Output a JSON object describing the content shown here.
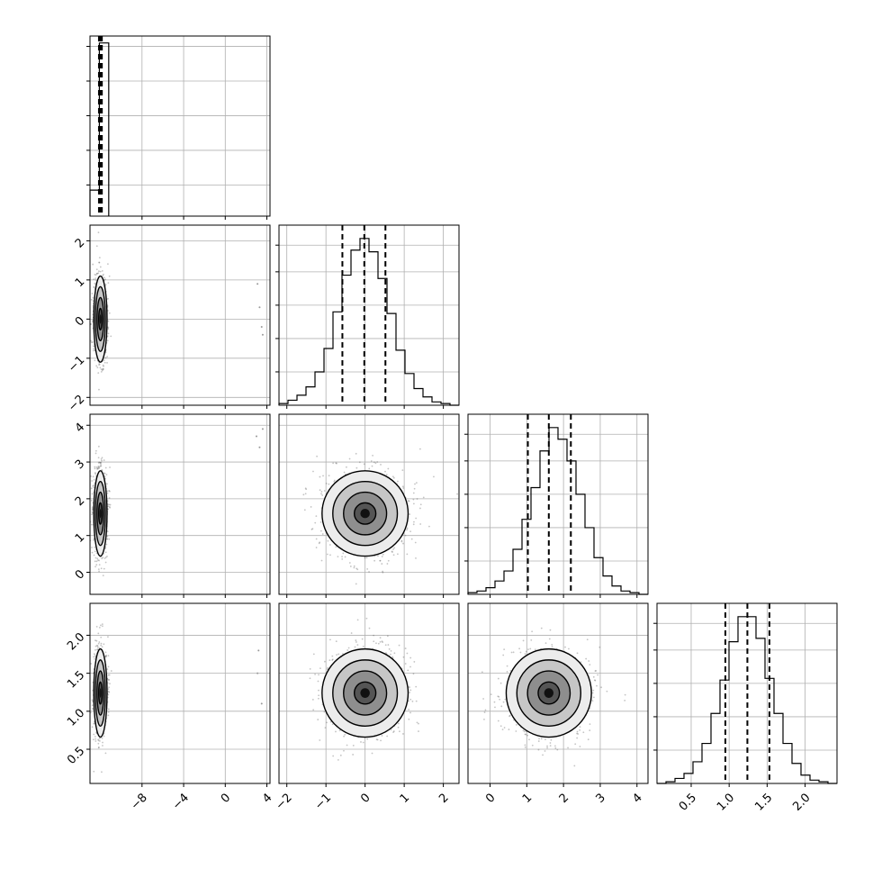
{
  "chart_data": {
    "type": "corner",
    "params": [
      {
        "range": [
          -13,
          4.3
        ],
        "ticks": [
          -8,
          -4,
          0,
          4
        ],
        "tick_labels": [
          "−8",
          "−4",
          "0",
          "4"
        ],
        "quantiles": [
          -12.0,
          -12.0,
          -12.0
        ],
        "hist_edges": [
          -13,
          -12.1,
          -11.2
        ],
        "hist_counts": [
          0.15,
          1.0
        ],
        "hist_ymax": 1.04,
        "diag_grid_levels": [
          0.18,
          0.38,
          0.58,
          0.78,
          0.98
        ],
        "marginal": {
          "center": -12.0,
          "sigma": 0.32
        }
      },
      {
        "range": [
          -2.2,
          2.4
        ],
        "ticks": [
          -2,
          -1,
          0,
          1,
          2
        ],
        "tick_labels": [
          "−2",
          "−1",
          "0",
          "1",
          "2"
        ],
        "quantiles": [
          -0.58,
          -0.02,
          0.52
        ],
        "hist_edges": [
          -2.2,
          -1.97,
          -1.74,
          -1.51,
          -1.28,
          -1.05,
          -0.82,
          -0.59,
          -0.36,
          -0.13,
          0.1,
          0.33,
          0.56,
          0.79,
          1.02,
          1.25,
          1.48,
          1.71,
          1.94,
          2.17,
          2.4
        ],
        "hist_counts": [
          0.01,
          0.03,
          0.06,
          0.11,
          0.2,
          0.34,
          0.56,
          0.78,
          0.93,
          1.0,
          0.92,
          0.76,
          0.55,
          0.33,
          0.19,
          0.1,
          0.05,
          0.02,
          0.01,
          0.0
        ],
        "hist_ymax": 1.08,
        "diag_grid_levels": [
          0.2,
          0.4,
          0.6,
          0.8,
          0.96
        ],
        "marginal": {
          "center": 0.0,
          "sigma": 0.55
        }
      },
      {
        "range": [
          -0.6,
          4.3
        ],
        "ticks": [
          0,
          1,
          2,
          3,
          4
        ],
        "tick_labels": [
          "0",
          "1",
          "2",
          "3",
          "4"
        ],
        "quantiles": [
          1.03,
          1.6,
          2.2
        ],
        "hist_edges": [
          -0.6,
          -0.355,
          -0.11,
          0.135,
          0.38,
          0.625,
          0.87,
          1.115,
          1.36,
          1.605,
          1.85,
          2.095,
          2.34,
          2.585,
          2.83,
          3.075,
          3.32,
          3.565,
          3.81,
          4.055,
          4.3
        ],
        "hist_counts": [
          0.01,
          0.02,
          0.04,
          0.08,
          0.14,
          0.27,
          0.45,
          0.64,
          0.86,
          1.0,
          0.93,
          0.8,
          0.6,
          0.4,
          0.22,
          0.11,
          0.05,
          0.02,
          0.01,
          0.0
        ],
        "hist_ymax": 1.08,
        "diag_grid_levels": [
          0.2,
          0.4,
          0.6,
          0.8,
          0.96
        ],
        "marginal": {
          "center": 1.6,
          "sigma": 0.58
        }
      },
      {
        "range": [
          0.05,
          2.42
        ],
        "ticks": [
          0.5,
          1.0,
          1.5,
          2.0
        ],
        "tick_labels": [
          "0.5",
          "1.0",
          "1.5",
          "2.0"
        ],
        "quantiles": [
          0.95,
          1.24,
          1.53
        ],
        "hist_edges": [
          0.05,
          0.1685,
          0.287,
          0.4055,
          0.524,
          0.6425,
          0.761,
          0.8795,
          0.998,
          1.1165,
          1.235,
          1.3535,
          1.472,
          1.5905,
          1.709,
          1.8275,
          1.946,
          2.0645,
          2.183,
          2.3015,
          2.42
        ],
        "hist_counts": [
          0.0,
          0.01,
          0.03,
          0.06,
          0.13,
          0.24,
          0.42,
          0.62,
          0.85,
          1.0,
          1.0,
          0.87,
          0.63,
          0.42,
          0.24,
          0.12,
          0.05,
          0.02,
          0.01,
          0.0
        ],
        "hist_ymax": 1.08,
        "diag_grid_levels": [
          0.2,
          0.4,
          0.6,
          0.8,
          0.96
        ],
        "marginal": {
          "center": 1.24,
          "sigma": 0.29
        }
      }
    ],
    "pairs": [
      {
        "x": 0,
        "y": 1,
        "corr": 0.0,
        "contour_sigmas": [
          0.5,
          1.0,
          1.5,
          2.0
        ],
        "outliers": [
          [
            3.1,
            0.9
          ],
          [
            3.3,
            0.3
          ],
          [
            3.5,
            -0.2
          ],
          [
            3.6,
            -0.4
          ]
        ]
      },
      {
        "x": 0,
        "y": 2,
        "corr": 0.0,
        "contour_sigmas": [
          0.5,
          1.0,
          1.5,
          2.0
        ],
        "outliers": [
          [
            3.0,
            3.7
          ],
          [
            3.3,
            3.4
          ],
          [
            3.6,
            3.9
          ]
        ]
      },
      {
        "x": 0,
        "y": 3,
        "corr": 0.0,
        "contour_sigmas": [
          0.5,
          1.0,
          1.5,
          2.0
        ],
        "outliers": [
          [
            3.2,
            1.8
          ],
          [
            3.5,
            1.1
          ],
          [
            3.1,
            1.5
          ]
        ]
      },
      {
        "x": 1,
        "y": 2,
        "corr": 0.0,
        "contour_sigmas": [
          0.5,
          1.0,
          1.5,
          2.0
        ],
        "outliers": []
      },
      {
        "x": 1,
        "y": 3,
        "corr": 0.0,
        "contour_sigmas": [
          0.5,
          1.0,
          1.5,
          2.0
        ],
        "outliers": []
      },
      {
        "x": 2,
        "y": 3,
        "corr": 0.0,
        "contour_sigmas": [
          0.5,
          1.0,
          1.5,
          2.0
        ],
        "outliers": []
      }
    ],
    "grid": true,
    "colors": {
      "line": "#000000",
      "scatter": "#555555",
      "grid": "#b0b0b0"
    }
  }
}
